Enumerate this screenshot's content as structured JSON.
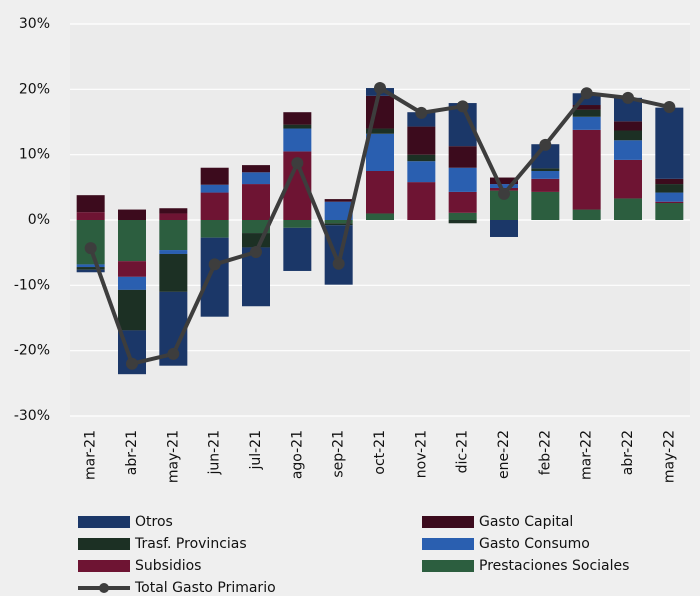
{
  "chart_data": {
    "type": "bar",
    "stacked": true,
    "categories": [
      "mar-21",
      "abr-21",
      "may-21",
      "jun-21",
      "jul-21",
      "ago-21",
      "sep-21",
      "oct-21",
      "nov-21",
      "dic-21",
      "ene-22",
      "feb-22",
      "mar-22",
      "abr-22",
      "may-22"
    ],
    "series": [
      {
        "name": "Otros",
        "color": "#1b3768",
        "values": [
          -0.4,
          -6.7,
          -11.3,
          -12.1,
          -9.0,
          -6.6,
          -9.1,
          1.2,
          2.2,
          6.6,
          -2.6,
          3.7,
          1.8,
          3.6,
          10.9
        ]
      },
      {
        "name": "Gasto Capital",
        "color": "#3c0b1d",
        "values": [
          2.6,
          1.6,
          0.8,
          2.6,
          1.1,
          1.9,
          0.4,
          5.0,
          4.3,
          3.3,
          1.0,
          0,
          0.7,
          1.4,
          0.8
        ]
      },
      {
        "name": "Trasf. Provincias",
        "color": "#1c3024",
        "values": [
          -0.4,
          -6.2,
          -5.8,
          0,
          -2.2,
          0.6,
          -0.3,
          0.8,
          1.0,
          -0.5,
          0,
          0.4,
          1.1,
          1.5,
          1.3
        ]
      },
      {
        "name": "Gasto Consumo",
        "color": "#2a5fb0",
        "values": [
          -0.4,
          -2.0,
          -0.6,
          1.2,
          1.8,
          3.5,
          2.8,
          5.7,
          3.2,
          3.7,
          0.6,
          1.2,
          2.0,
          3.0,
          1.4
        ]
      },
      {
        "name": "Subsidios",
        "color": "#6e1433",
        "values": [
          1.2,
          -2.4,
          1.0,
          4.2,
          5.5,
          10.5,
          0,
          6.5,
          5.8,
          3.2,
          0.4,
          2.0,
          12.2,
          5.9,
          0.2
        ]
      },
      {
        "name": "Prestaciones Sociales",
        "color": "#2c5e3f",
        "values": [
          -6.8,
          -6.3,
          -4.6,
          -2.7,
          -2.0,
          -1.2,
          -0.5,
          1.0,
          0,
          1.1,
          4.5,
          4.3,
          1.6,
          3.3,
          2.6
        ]
      },
      {
        "name": "Total Gasto Primario",
        "type": "line",
        "color": "#3d3d3d",
        "values": [
          -4.3,
          -22.0,
          -20.5,
          -6.8,
          -4.9,
          8.7,
          -6.7,
          20.2,
          16.4,
          17.4,
          4.0,
          11.5,
          19.4,
          18.7,
          17.3
        ]
      }
    ],
    "ylim": [
      -30,
      30
    ],
    "yticks": [
      {
        "value": 30,
        "label": "30%"
      },
      {
        "value": 20,
        "label": "20%"
      },
      {
        "value": 10,
        "label": "10%"
      },
      {
        "value": 0,
        "label": "0%"
      },
      {
        "value": -10,
        "label": "-10%"
      },
      {
        "value": -20,
        "label": "-20%"
      },
      {
        "value": -30,
        "label": "-30%"
      }
    ],
    "grid": true,
    "legend": "bottom"
  }
}
